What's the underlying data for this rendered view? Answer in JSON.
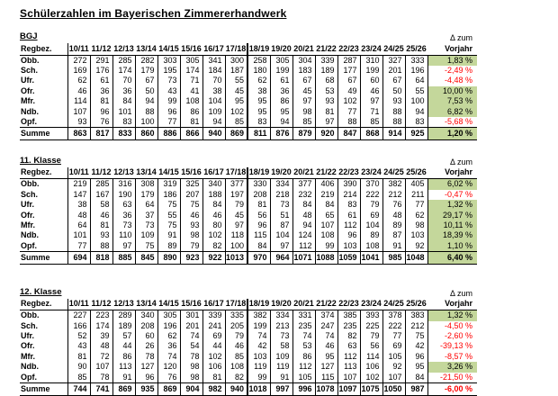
{
  "title": "Schülerzahlen im Bayerischen Zimmererhandwerk",
  "columns": {
    "region_header": "Regbez.",
    "years": [
      "10/11",
      "11/12",
      "12/13",
      "13/14",
      "14/15",
      "15/16",
      "16/17",
      "17/18",
      "18/19",
      "19/20",
      "20/21",
      "21/22",
      "22/23",
      "23/24",
      "24/25",
      "25/26"
    ],
    "delta_header_line1": "Δ zum",
    "delta_header_line2": "Vorjahr"
  },
  "colors": {
    "positive_bg": "#c4d79b",
    "negative_text": "#ff0000"
  },
  "tables": [
    {
      "label": "BGJ",
      "rows": [
        {
          "label": "Obb.",
          "values": [
            272,
            291,
            285,
            282,
            303,
            305,
            341,
            300,
            258,
            305,
            304,
            339,
            287,
            310,
            327,
            333
          ],
          "delta": "1,83 %"
        },
        {
          "label": "Sch.",
          "values": [
            169,
            176,
            174,
            179,
            195,
            174,
            184,
            187,
            180,
            199,
            183,
            189,
            177,
            199,
            201,
            196
          ],
          "delta": "-2,49 %"
        },
        {
          "label": "Ufr.",
          "values": [
            62,
            61,
            70,
            67,
            73,
            71,
            70,
            55,
            62,
            61,
            67,
            68,
            67,
            60,
            67,
            64
          ],
          "delta": "-4,48 %"
        },
        {
          "label": "Ofr.",
          "values": [
            46,
            36,
            36,
            50,
            43,
            41,
            38,
            45,
            38,
            36,
            45,
            53,
            49,
            46,
            50,
            55
          ],
          "delta": "10,00 %"
        },
        {
          "label": "Mfr.",
          "values": [
            114,
            81,
            84,
            94,
            99,
            108,
            104,
            95,
            95,
            86,
            97,
            93,
            102,
            97,
            93,
            100
          ],
          "delta": "7,53 %"
        },
        {
          "label": "Ndb.",
          "values": [
            107,
            96,
            101,
            88,
            96,
            86,
            109,
            102,
            95,
            95,
            98,
            81,
            77,
            71,
            88,
            94
          ],
          "delta": "6,82 %"
        },
        {
          "label": "Opf.",
          "values": [
            93,
            76,
            83,
            100,
            77,
            81,
            94,
            85,
            83,
            94,
            85,
            97,
            88,
            85,
            88,
            83
          ],
          "delta": "-5,68 %"
        }
      ],
      "total": {
        "label": "Summe",
        "values": [
          863,
          817,
          833,
          860,
          886,
          866,
          940,
          869,
          811,
          876,
          879,
          920,
          847,
          868,
          914,
          925
        ],
        "delta": "1,20 %"
      }
    },
    {
      "label": "11. Klasse",
      "rows": [
        {
          "label": "Obb.",
          "values": [
            219,
            285,
            316,
            308,
            319,
            325,
            340,
            377,
            330,
            334,
            377,
            406,
            390,
            370,
            382,
            405
          ],
          "delta": "6,02 %"
        },
        {
          "label": "Sch.",
          "values": [
            147,
            167,
            190,
            179,
            186,
            207,
            188,
            197,
            208,
            218,
            232,
            219,
            214,
            222,
            212,
            211
          ],
          "delta": "-0,47 %"
        },
        {
          "label": "Ufr.",
          "values": [
            38,
            58,
            63,
            64,
            75,
            75,
            84,
            79,
            81,
            73,
            84,
            84,
            83,
            79,
            76,
            77
          ],
          "delta": "1,32 %"
        },
        {
          "label": "Ofr.",
          "values": [
            48,
            46,
            36,
            37,
            55,
            46,
            46,
            45,
            56,
            51,
            48,
            65,
            61,
            69,
            48,
            62
          ],
          "delta": "29,17 %"
        },
        {
          "label": "Mfr.",
          "values": [
            64,
            81,
            73,
            73,
            75,
            93,
            80,
            97,
            96,
            87,
            94,
            107,
            112,
            104,
            89,
            98
          ],
          "delta": "10,11 %"
        },
        {
          "label": "Ndb.",
          "values": [
            101,
            93,
            110,
            109,
            91,
            98,
            102,
            118,
            115,
            104,
            124,
            108,
            96,
            89,
            87,
            103
          ],
          "delta": "18,39 %"
        },
        {
          "label": "Opf.",
          "values": [
            77,
            88,
            97,
            75,
            89,
            79,
            82,
            100,
            84,
            97,
            112,
            99,
            103,
            108,
            91,
            92
          ],
          "delta": "1,10 %"
        }
      ],
      "total": {
        "label": "Summe",
        "values": [
          694,
          818,
          885,
          845,
          890,
          923,
          922,
          1013,
          970,
          964,
          1071,
          1088,
          1059,
          1041,
          985,
          1048
        ],
        "delta": "6,40 %"
      }
    },
    {
      "label": "12. Klasse",
      "rows": [
        {
          "label": "Obb.",
          "values": [
            227,
            223,
            289,
            340,
            305,
            301,
            339,
            335,
            382,
            334,
            331,
            374,
            385,
            393,
            378,
            383
          ],
          "delta": "1,32 %"
        },
        {
          "label": "Sch.",
          "values": [
            166,
            174,
            189,
            208,
            196,
            201,
            241,
            205,
            199,
            213,
            235,
            247,
            235,
            225,
            222,
            212
          ],
          "delta": "-4,50 %"
        },
        {
          "label": "Ufr.",
          "values": [
            52,
            39,
            57,
            60,
            62,
            74,
            69,
            79,
            74,
            73,
            74,
            74,
            82,
            79,
            77,
            75
          ],
          "delta": "-2,60 %"
        },
        {
          "label": "Ofr.",
          "values": [
            43,
            48,
            44,
            26,
            36,
            54,
            44,
            46,
            42,
            58,
            53,
            46,
            63,
            56,
            69,
            42
          ],
          "delta": "-39,13 %"
        },
        {
          "label": "Mfr.",
          "values": [
            81,
            72,
            86,
            78,
            74,
            78,
            102,
            85,
            103,
            109,
            86,
            95,
            112,
            114,
            105,
            96
          ],
          "delta": "-8,57 %"
        },
        {
          "label": "Ndb.",
          "values": [
            90,
            107,
            113,
            127,
            120,
            98,
            106,
            108,
            119,
            119,
            112,
            127,
            113,
            106,
            92,
            95
          ],
          "delta": "3,26 %"
        },
        {
          "label": "Opf.",
          "values": [
            85,
            78,
            91,
            96,
            76,
            98,
            81,
            82,
            99,
            91,
            105,
            115,
            107,
            102,
            107,
            84
          ],
          "delta": "-21,50 %"
        }
      ],
      "total": {
        "label": "Summe",
        "values": [
          744,
          741,
          869,
          935,
          869,
          904,
          982,
          940,
          1018,
          997,
          996,
          1078,
          1097,
          1075,
          1050,
          987
        ],
        "delta": "-6,00 %"
      }
    }
  ]
}
